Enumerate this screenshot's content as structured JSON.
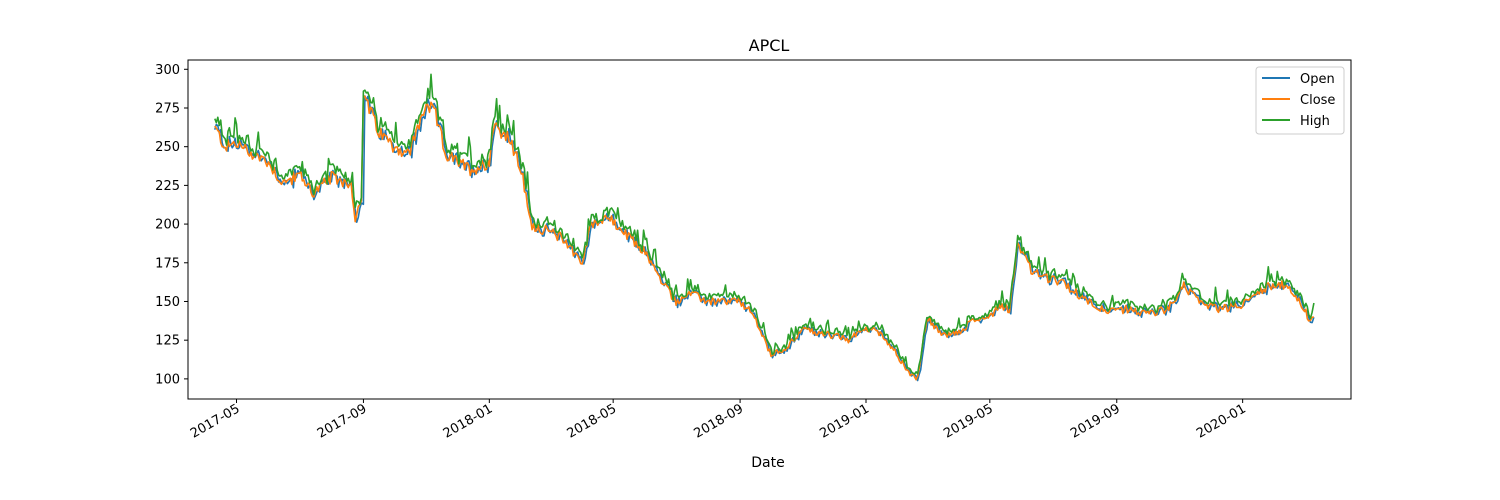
{
  "chart_data": {
    "type": "line",
    "title": "APCL",
    "xlabel": "Date",
    "ylabel": "",
    "ylim": [
      87,
      306
    ],
    "xlim": [
      "2017-03-15",
      "2020-04-15"
    ],
    "x_ticks": [
      "2017-05-01",
      "2017-09-01",
      "2018-01-01",
      "2018-05-01",
      "2018-09-01",
      "2019-01-01",
      "2019-05-01",
      "2019-09-01",
      "2020-01-01"
    ],
    "x_tick_labels": [
      "2017-05",
      "2017-09",
      "2018-01",
      "2018-05",
      "2018-09",
      "2019-01",
      "2019-05",
      "2019-09",
      "2020-01"
    ],
    "y_ticks": [
      100,
      125,
      150,
      175,
      200,
      225,
      250,
      275,
      300
    ],
    "y_tick_labels": [
      "100",
      "125",
      "150",
      "175",
      "200",
      "225",
      "250",
      "275",
      "300"
    ],
    "legend": {
      "placement": "top-right",
      "entries": [
        "Open",
        "Close",
        "High"
      ]
    },
    "colors": {
      "Open": "#1f77b4",
      "Close": "#ff7f0e",
      "High": "#2ca02c"
    },
    "close_anchors": [
      [
        "2017-04-10",
        262
      ],
      [
        "2017-04-20",
        250
      ],
      [
        "2017-05-01",
        252
      ],
      [
        "2017-05-15",
        246
      ],
      [
        "2017-06-01",
        240
      ],
      [
        "2017-06-15",
        226
      ],
      [
        "2017-07-01",
        232
      ],
      [
        "2017-07-15",
        220
      ],
      [
        "2017-08-01",
        230
      ],
      [
        "2017-08-12",
        228
      ],
      [
        "2017-08-20",
        226
      ],
      [
        "2017-08-24",
        205
      ],
      [
        "2017-08-30",
        212
      ],
      [
        "2017-09-01",
        285
      ],
      [
        "2017-09-15",
        260
      ],
      [
        "2017-10-01",
        250
      ],
      [
        "2017-10-15",
        245
      ],
      [
        "2017-11-01",
        278
      ],
      [
        "2017-11-10",
        270
      ],
      [
        "2017-11-20",
        245
      ],
      [
        "2017-12-01",
        240
      ],
      [
        "2017-12-15",
        235
      ],
      [
        "2018-01-01",
        240
      ],
      [
        "2018-01-05",
        265
      ],
      [
        "2018-01-20",
        255
      ],
      [
        "2018-02-01",
        235
      ],
      [
        "2018-02-10",
        200
      ],
      [
        "2018-02-20",
        197
      ],
      [
        "2018-03-01",
        195
      ],
      [
        "2018-03-15",
        190
      ],
      [
        "2018-04-01",
        175
      ],
      [
        "2018-04-10",
        200
      ],
      [
        "2018-04-25",
        205
      ],
      [
        "2018-05-10",
        195
      ],
      [
        "2018-06-01",
        182
      ],
      [
        "2018-06-15",
        165
      ],
      [
        "2018-07-01",
        150
      ],
      [
        "2018-07-15",
        155
      ],
      [
        "2018-08-01",
        150
      ],
      [
        "2018-08-15",
        150
      ],
      [
        "2018-09-01",
        150
      ],
      [
        "2018-09-15",
        140
      ],
      [
        "2018-10-01",
        115
      ],
      [
        "2018-10-15",
        120
      ],
      [
        "2018-11-01",
        132
      ],
      [
        "2018-11-15",
        130
      ],
      [
        "2018-12-01",
        128
      ],
      [
        "2018-12-15",
        125
      ],
      [
        "2019-01-01",
        133
      ],
      [
        "2019-01-15",
        130
      ],
      [
        "2019-02-01",
        115
      ],
      [
        "2019-02-10",
        105
      ],
      [
        "2019-02-20",
        100
      ],
      [
        "2019-03-01",
        140
      ],
      [
        "2019-03-15",
        128
      ],
      [
        "2019-04-01",
        130
      ],
      [
        "2019-04-15",
        138
      ],
      [
        "2019-05-01",
        140
      ],
      [
        "2019-05-10",
        148
      ],
      [
        "2019-05-20",
        145
      ],
      [
        "2019-05-28",
        188
      ],
      [
        "2019-06-10",
        170
      ],
      [
        "2019-06-25",
        165
      ],
      [
        "2019-07-10",
        162
      ],
      [
        "2019-07-25",
        155
      ],
      [
        "2019-08-10",
        148
      ],
      [
        "2019-08-25",
        143
      ],
      [
        "2019-09-10",
        145
      ],
      [
        "2019-10-01",
        142
      ],
      [
        "2019-10-20",
        145
      ],
      [
        "2019-11-05",
        160
      ],
      [
        "2019-11-20",
        150
      ],
      [
        "2019-12-10",
        145
      ],
      [
        "2020-01-01",
        148
      ],
      [
        "2020-01-20",
        158
      ],
      [
        "2020-02-05",
        162
      ],
      [
        "2020-02-20",
        155
      ],
      [
        "2020-03-01",
        145
      ],
      [
        "2020-03-05",
        138
      ],
      [
        "2020-03-10",
        140
      ]
    ]
  }
}
